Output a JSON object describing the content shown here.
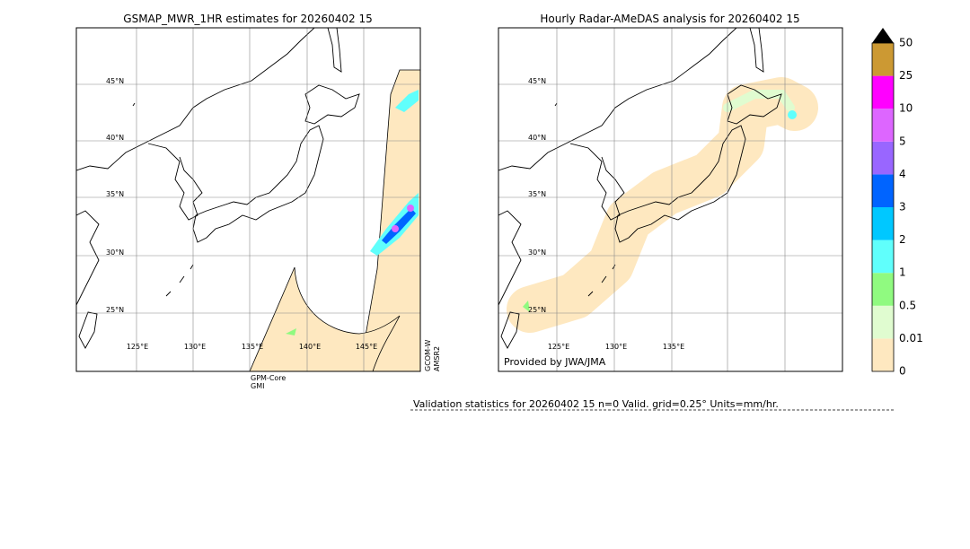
{
  "left_map": {
    "title": "GSMAP_MWR_1HR estimates for 20260402 15",
    "lat_labels": [
      "45°N",
      "40°N",
      "35°N",
      "30°N",
      "25°N"
    ],
    "lon_labels": [
      "125°E",
      "130°E",
      "135°E",
      "140°E",
      "145°E"
    ],
    "sensor_a": [
      "GPM-Core",
      "GMI"
    ],
    "sensor_b": [
      "GCOM-W",
      "AMSR2"
    ]
  },
  "right_map": {
    "title": "Hourly Radar-AMeDAS analysis for 20260402 15",
    "lat_labels": [
      "45°N",
      "40°N",
      "35°N",
      "30°N",
      "25°N"
    ],
    "lon_labels": [
      "125°E",
      "130°E",
      "135°E"
    ],
    "credit": "Provided by JWA/JMA"
  },
  "colorbar": {
    "labels": [
      "0",
      "0.01",
      "0.5",
      "1",
      "2",
      "3",
      "4",
      "5",
      "10",
      "25",
      "50"
    ]
  },
  "validation": "Validation statistics for 20260402 15  n=0 Valid. grid=0.25° Units=mm/hr."
}
